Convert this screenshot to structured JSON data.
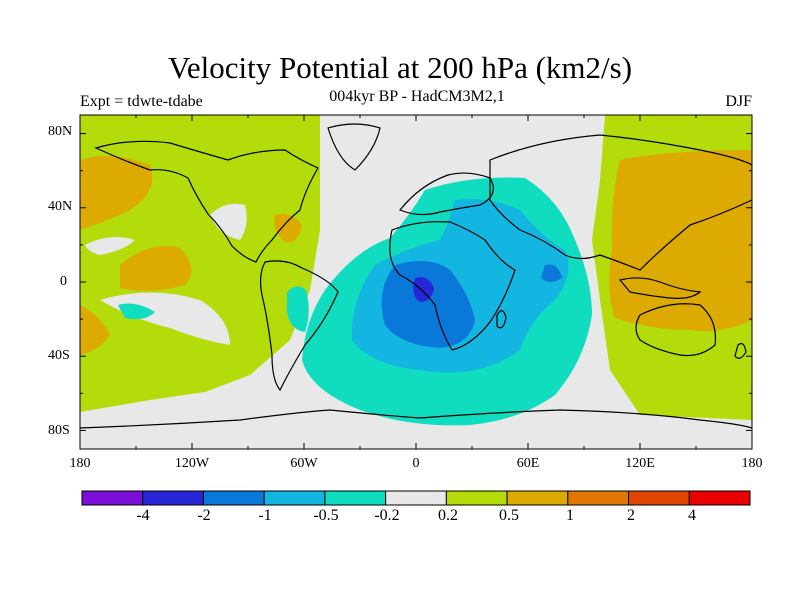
{
  "title": "Velocity Potential at 200 hPa (km2/s)",
  "subtitle": "004kyr BP - HadCM3M2,1",
  "expt_label": "Expt = tdwte-tdabe",
  "season": "DJF",
  "map": {
    "projection": "cylindrical-equidistant",
    "lon_range": [
      -180,
      180
    ],
    "lat_range": [
      -90,
      90
    ],
    "lat_ticks": [
      "80N",
      "40N",
      "0",
      "40S",
      "80S"
    ],
    "lon_ticks": [
      "180",
      "120W",
      "60W",
      "0",
      "60E",
      "120E",
      "180"
    ],
    "coastlines": true
  },
  "colorbar": {
    "labels": [
      "-4",
      "-2",
      "-1",
      "-0.5",
      "-0.2",
      "0.2",
      "0.5",
      "1",
      "2",
      "4"
    ],
    "colors": [
      "#7a10d8",
      "#2626d6",
      "#0a78d8",
      "#12b6e0",
      "#10dcc0",
      "#e8e8e8",
      "#b4dc0a",
      "#dcaa00",
      "#e07800",
      "#e04600",
      "#e80000"
    ]
  }
}
